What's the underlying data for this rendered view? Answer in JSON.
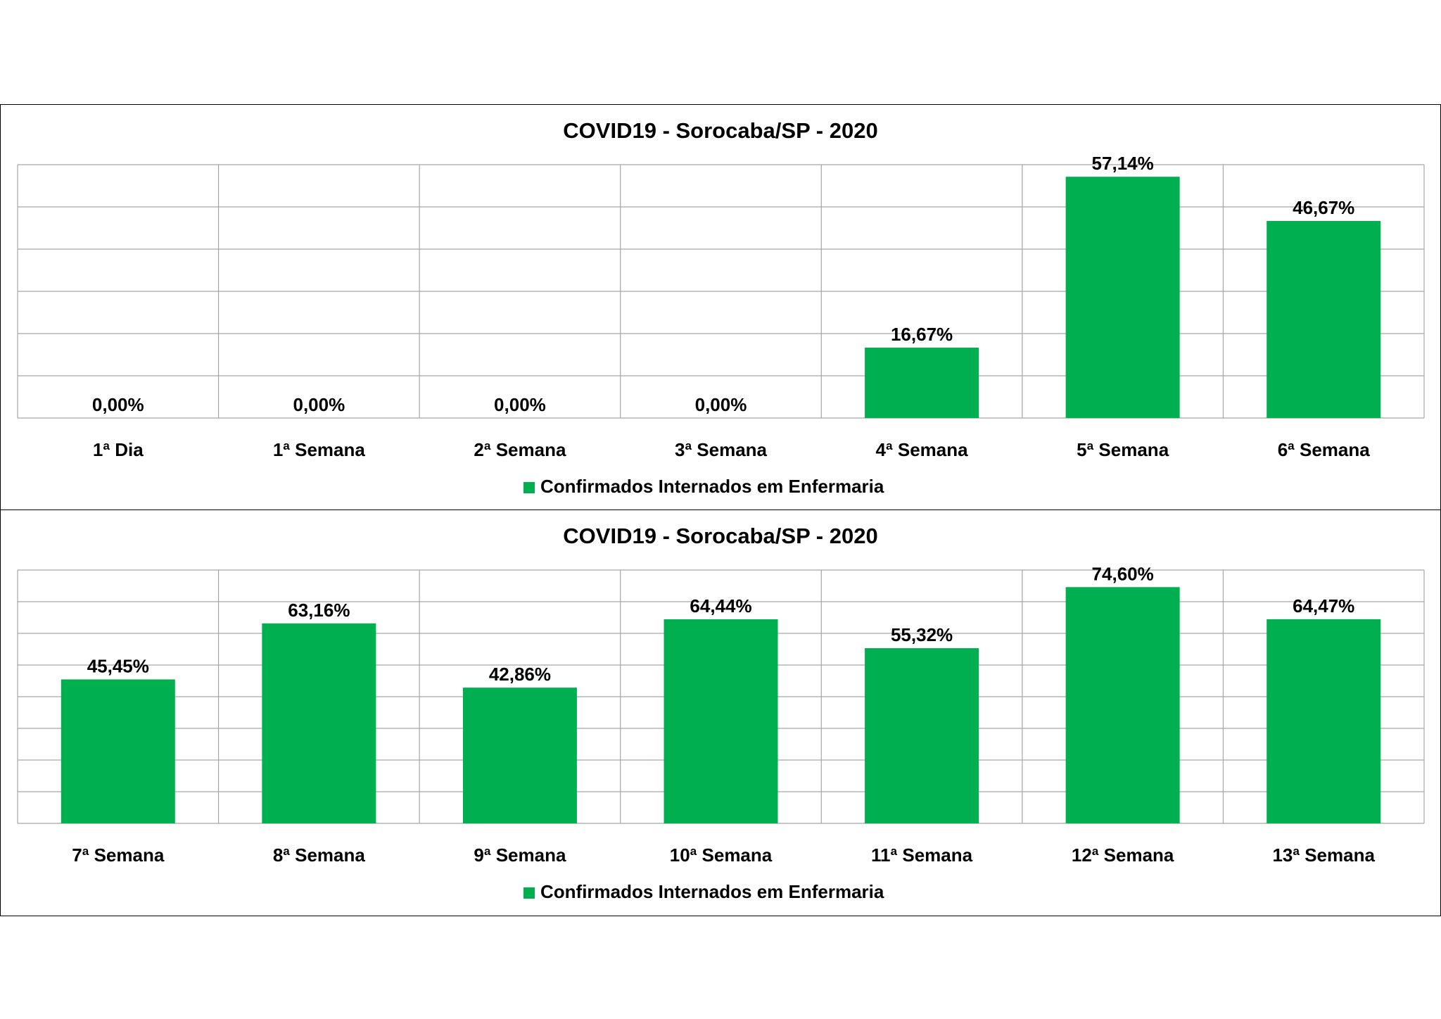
{
  "chart_data": [
    {
      "type": "bar",
      "title": "COVID19 - Sorocaba/SP - 2020",
      "categories": [
        "1ª Dia",
        "1ª Semana",
        "2ª Semana",
        "3ª Semana",
        "4ª Semana",
        "5ª Semana",
        "6ª Semana"
      ],
      "series": [
        {
          "name": "Confirmados Internados em Enfermaria",
          "values": [
            0.0,
            0.0,
            0.0,
            0.0,
            16.67,
            57.14,
            46.67
          ],
          "labels": [
            "0,00%",
            "0,00%",
            "0,00%",
            "0,00%",
            "16,67%",
            "57,14%",
            "46,67%"
          ]
        }
      ],
      "ylim": [
        0,
        60
      ],
      "gridline_step": 10,
      "grid": true,
      "legend_position": "bottom",
      "colors": {
        "bar": "#00B050",
        "grid": "#A6A6A6"
      }
    },
    {
      "type": "bar",
      "title": "COVID19 - Sorocaba/SP - 2020",
      "categories": [
        "7ª Semana",
        "8ª Semana",
        "9ª Semana",
        "10ª Semana",
        "11ª Semana",
        "12ª Semana",
        "13ª Semana"
      ],
      "series": [
        {
          "name": "Confirmados Internados em Enfermaria",
          "values": [
            45.45,
            63.16,
            42.86,
            64.44,
            55.32,
            74.6,
            64.47
          ],
          "labels": [
            "45,45%",
            "63,16%",
            "42,86%",
            "64,44%",
            "55,32%",
            "74,60%",
            "64,47%"
          ]
        }
      ],
      "ylim": [
        0,
        80
      ],
      "gridline_step": 10,
      "grid": true,
      "legend_position": "bottom",
      "colors": {
        "bar": "#00B050",
        "grid": "#A6A6A6"
      }
    }
  ]
}
